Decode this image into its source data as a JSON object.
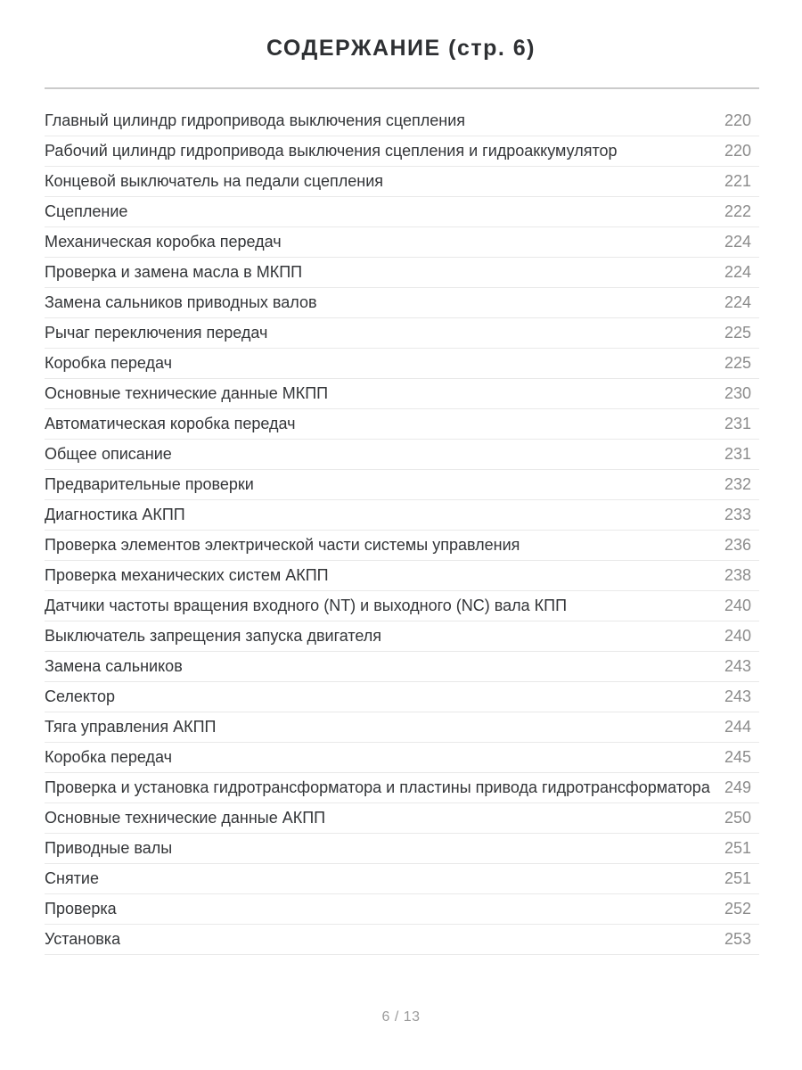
{
  "page": {
    "title": "СОДЕРЖАНИЕ (стр. 6)",
    "footer": "6 / 13"
  },
  "colors": {
    "title_text": "#2e3033",
    "entry_text": "#333538",
    "page_number_text": "#8b8b8b",
    "row_divider": "#e9e9e9",
    "title_rule": "#cbcbcb",
    "background": "#ffffff"
  },
  "toc": {
    "entries": [
      {
        "label": "Главный цилиндр гидропривода выключения сцепления",
        "page": "220"
      },
      {
        "label": "Рабочий цилиндр гидропривода выключения сцепления и гидроаккумулятор",
        "page": "220"
      },
      {
        "label": "Концевой выключатель на педали сцепления",
        "page": "221"
      },
      {
        "label": "Сцепление",
        "page": "222"
      },
      {
        "label": "Механическая коробка передач",
        "page": "224"
      },
      {
        "label": "Проверка и замена масла в МКПП",
        "page": "224"
      },
      {
        "label": "Замена сальников приводных валов",
        "page": "224"
      },
      {
        "label": "Рычаг переключения передач",
        "page": "225"
      },
      {
        "label": "Коробка передач",
        "page": "225"
      },
      {
        "label": "Основные технические данные МКПП",
        "page": "230"
      },
      {
        "label": "Автоматическая коробка передач",
        "page": "231"
      },
      {
        "label": "Общее описание",
        "page": "231"
      },
      {
        "label": "Предварительные проверки",
        "page": "232"
      },
      {
        "label": "Диагностика АКПП",
        "page": "233"
      },
      {
        "label": "Проверка элементов электрической части системы управления",
        "page": "236"
      },
      {
        "label": "Проверка механических систем АКПП",
        "page": "238"
      },
      {
        "label": "Датчики частоты вращения входного (NT) и выходного (NC) вала КПП",
        "page": "240"
      },
      {
        "label": "Выключатель запрещения запуска двигателя",
        "page": "240"
      },
      {
        "label": "Замена сальников",
        "page": "243"
      },
      {
        "label": "Селектор",
        "page": "243"
      },
      {
        "label": "Тяга управления АКПП",
        "page": "244"
      },
      {
        "label": "Коробка передач",
        "page": "245"
      },
      {
        "label": "Проверка и установка гидротрансформатора и пластины привода гидротрансформатора",
        "page": "249"
      },
      {
        "label": "Основные технические данные АКПП",
        "page": "250"
      },
      {
        "label": "Приводные валы",
        "page": "251"
      },
      {
        "label": "Снятие",
        "page": "251"
      },
      {
        "label": "Проверка",
        "page": "252"
      },
      {
        "label": "Установка",
        "page": "253"
      }
    ]
  }
}
